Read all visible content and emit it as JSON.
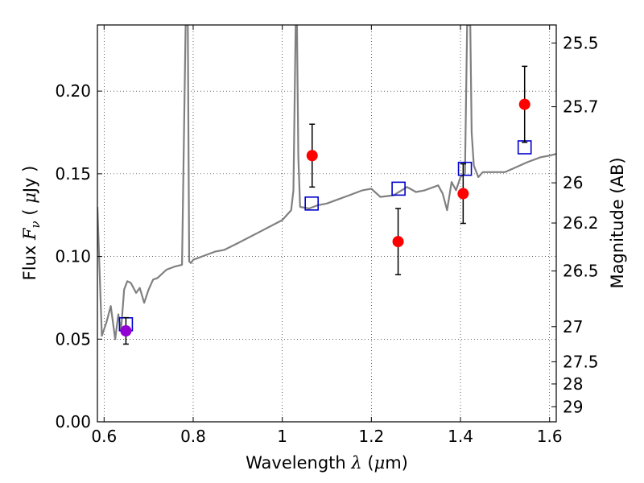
{
  "chart_data": {
    "type": "scatter",
    "xlabel": "Wavelength  λ (μm)",
    "ylabel": "Flux  F_ν  ( μJy )",
    "ylabel_parts": [
      "Flux  ",
      "F",
      "ν",
      "  ( ",
      "μ",
      "Jy )"
    ],
    "xlabel_parts": [
      "Wavelength  ",
      "λ",
      " (",
      "μ",
      "m)"
    ],
    "ylabel_right": "Magnitude (AB)",
    "xlim": [
      0.585,
      1.615
    ],
    "ylim": [
      0.0,
      0.24
    ],
    "grid": true,
    "x_ticks": [
      {
        "value": 0.6,
        "label": "0.6"
      },
      {
        "value": 0.8,
        "label": "0.8"
      },
      {
        "value": 1.0,
        "label": "1"
      },
      {
        "value": 1.2,
        "label": "1.2"
      },
      {
        "value": 1.4,
        "label": "1.4"
      },
      {
        "value": 1.6,
        "label": "1.6"
      }
    ],
    "y_ticks": [
      {
        "value": 0.0,
        "label": "0.00"
      },
      {
        "value": 0.05,
        "label": "0.05"
      },
      {
        "value": 0.1,
        "label": "0.10"
      },
      {
        "value": 0.15,
        "label": "0.15"
      },
      {
        "value": 0.2,
        "label": "0.20"
      }
    ],
    "mag_ticks": [
      {
        "value": 25.5,
        "label": "25.5"
      },
      {
        "value": 25.7,
        "label": "25.7"
      },
      {
        "value": 26.0,
        "label": "26"
      },
      {
        "value": 26.2,
        "label": "26.2"
      },
      {
        "value": 26.5,
        "label": "26.5"
      },
      {
        "value": 27.0,
        "label": "27"
      },
      {
        "value": 27.5,
        "label": "27.5"
      },
      {
        "value": 28.0,
        "label": "28"
      },
      {
        "value": 29.0,
        "label": "29"
      }
    ],
    "series": [
      {
        "type": "line",
        "color": "#808080",
        "x": [
          0.585,
          0.595,
          0.605,
          0.615,
          0.625,
          0.632,
          0.638,
          0.645,
          0.652,
          0.66,
          0.672,
          0.68,
          0.69,
          0.7,
          0.71,
          0.72,
          0.74,
          0.76,
          0.775,
          0.783,
          0.788,
          0.791,
          0.795,
          0.8,
          0.82,
          0.85,
          0.87,
          0.9,
          0.95,
          1.0,
          1.02,
          1.025,
          1.03,
          1.033,
          1.036,
          1.04,
          1.06,
          1.08,
          1.1,
          1.13,
          1.15,
          1.18,
          1.2,
          1.22,
          1.25,
          1.28,
          1.3,
          1.32,
          1.35,
          1.36,
          1.37,
          1.38,
          1.39,
          1.4,
          1.41,
          1.415,
          1.418,
          1.422,
          1.425,
          1.43,
          1.44,
          1.45,
          1.5,
          1.55,
          1.58,
          1.6,
          1.615
        ],
        "y": [
          0.13,
          0.052,
          0.06,
          0.07,
          0.05,
          0.065,
          0.055,
          0.08,
          0.085,
          0.084,
          0.078,
          0.081,
          0.072,
          0.08,
          0.086,
          0.087,
          0.092,
          0.094,
          0.095,
          0.24,
          0.24,
          0.097,
          0.096,
          0.098,
          0.1,
          0.103,
          0.104,
          0.108,
          0.115,
          0.122,
          0.128,
          0.14,
          0.24,
          0.24,
          0.16,
          0.13,
          0.129,
          0.131,
          0.132,
          0.135,
          0.137,
          0.14,
          0.141,
          0.136,
          0.137,
          0.142,
          0.139,
          0.14,
          0.143,
          0.138,
          0.128,
          0.145,
          0.14,
          0.148,
          0.15,
          0.24,
          0.24,
          0.24,
          0.175,
          0.155,
          0.148,
          0.151,
          0.151,
          0.157,
          0.16,
          0.161,
          0.162
        ]
      },
      {
        "type": "scatter",
        "marker": "square",
        "color": "#0000cc",
        "x": [
          0.649,
          1.066,
          1.261,
          1.41,
          1.544
        ],
        "y": [
          0.059,
          0.132,
          0.141,
          0.153,
          0.166
        ]
      },
      {
        "type": "scatter",
        "marker": "circle",
        "color": "#ff0000",
        "x": [
          0.649,
          1.067,
          1.26,
          1.406,
          1.544
        ],
        "y": [
          0.055,
          0.161,
          0.109,
          0.138,
          0.192
        ],
        "yerr": [
          0.008,
          0.019,
          0.02,
          0.018,
          0.023
        ]
      }
    ]
  }
}
